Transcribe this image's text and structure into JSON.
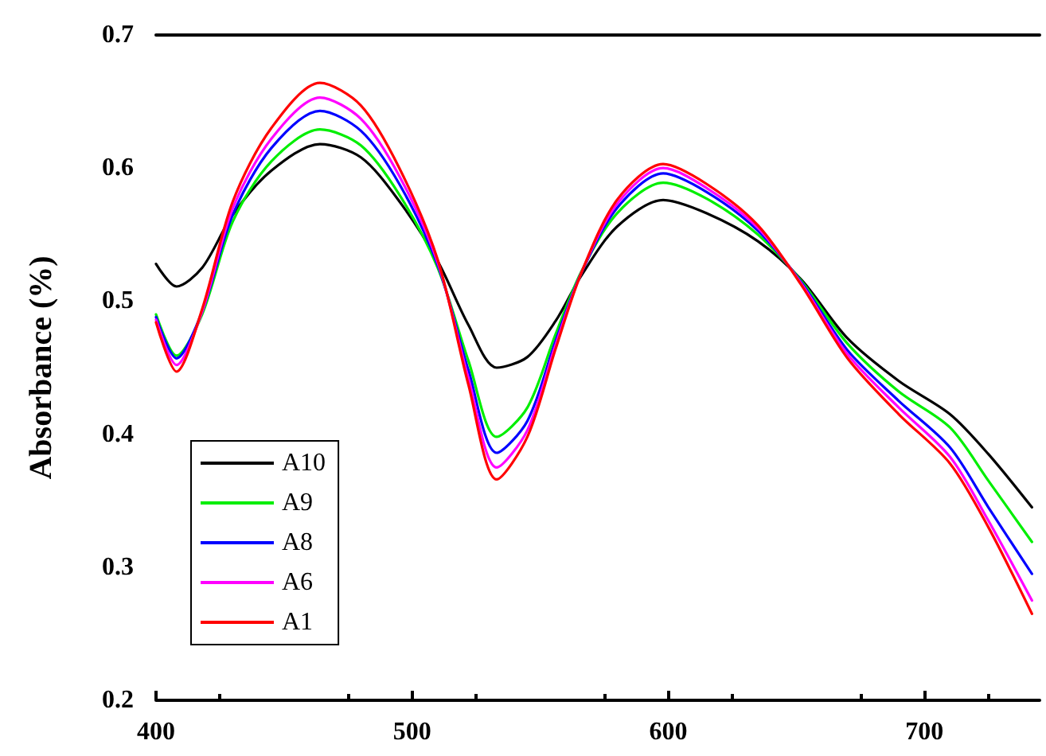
{
  "chart_data": {
    "type": "line",
    "ylabel": "Absorbance (%)",
    "x": [
      400,
      408,
      418,
      430,
      445,
      464,
      480,
      495,
      510,
      522,
      533,
      545,
      556,
      566,
      580,
      598,
      615,
      635,
      652,
      670,
      690,
      710,
      725,
      742
    ],
    "series": [
      {
        "name": "A10",
        "color": "#000000",
        "values": [
          0.528,
          0.511,
          0.525,
          0.565,
          0.598,
          0.618,
          0.608,
          0.575,
          0.53,
          0.482,
          0.45,
          0.458,
          0.485,
          0.519,
          0.556,
          0.576,
          0.566,
          0.545,
          0.516,
          0.472,
          0.44,
          0.415,
          0.385,
          0.345
        ]
      },
      {
        "name": "A9",
        "color": "#00ee00",
        "values": [
          0.49,
          0.459,
          0.49,
          0.56,
          0.605,
          0.629,
          0.617,
          0.58,
          0.525,
          0.455,
          0.398,
          0.42,
          0.475,
          0.522,
          0.566,
          0.589,
          0.577,
          0.55,
          0.515,
          0.468,
          0.432,
          0.405,
          0.365,
          0.319
        ]
      },
      {
        "name": "A8",
        "color": "#0000ff",
        "values": [
          0.488,
          0.457,
          0.492,
          0.565,
          0.615,
          0.643,
          0.628,
          0.588,
          0.527,
          0.448,
          0.386,
          0.41,
          0.47,
          0.521,
          0.57,
          0.596,
          0.582,
          0.553,
          0.514,
          0.463,
          0.425,
          0.39,
          0.345,
          0.295
        ]
      },
      {
        "name": "A6",
        "color": "#ff00ff",
        "values": [
          0.486,
          0.452,
          0.492,
          0.57,
          0.622,
          0.653,
          0.637,
          0.594,
          0.529,
          0.442,
          0.375,
          0.403,
          0.467,
          0.521,
          0.573,
          0.6,
          0.585,
          0.555,
          0.513,
          0.46,
          0.42,
          0.383,
          0.335,
          0.275
        ]
      },
      {
        "name": "A1",
        "color": "#ff0000",
        "values": [
          0.484,
          0.447,
          0.494,
          0.575,
          0.63,
          0.664,
          0.647,
          0.6,
          0.531,
          0.437,
          0.366,
          0.398,
          0.464,
          0.521,
          0.576,
          0.603,
          0.588,
          0.557,
          0.512,
          0.457,
          0.415,
          0.378,
          0.33,
          0.265
        ]
      }
    ],
    "xlim": [
      400,
      745
    ],
    "xticks": [
      400,
      500,
      600,
      700
    ],
    "ylim": [
      0.2,
      0.7
    ],
    "yticks": [
      0.2,
      0.3,
      0.4,
      0.5,
      0.6,
      0.7
    ],
    "grid": false,
    "legend": "bottom left",
    "marker": "none",
    "line_style": "solid"
  }
}
